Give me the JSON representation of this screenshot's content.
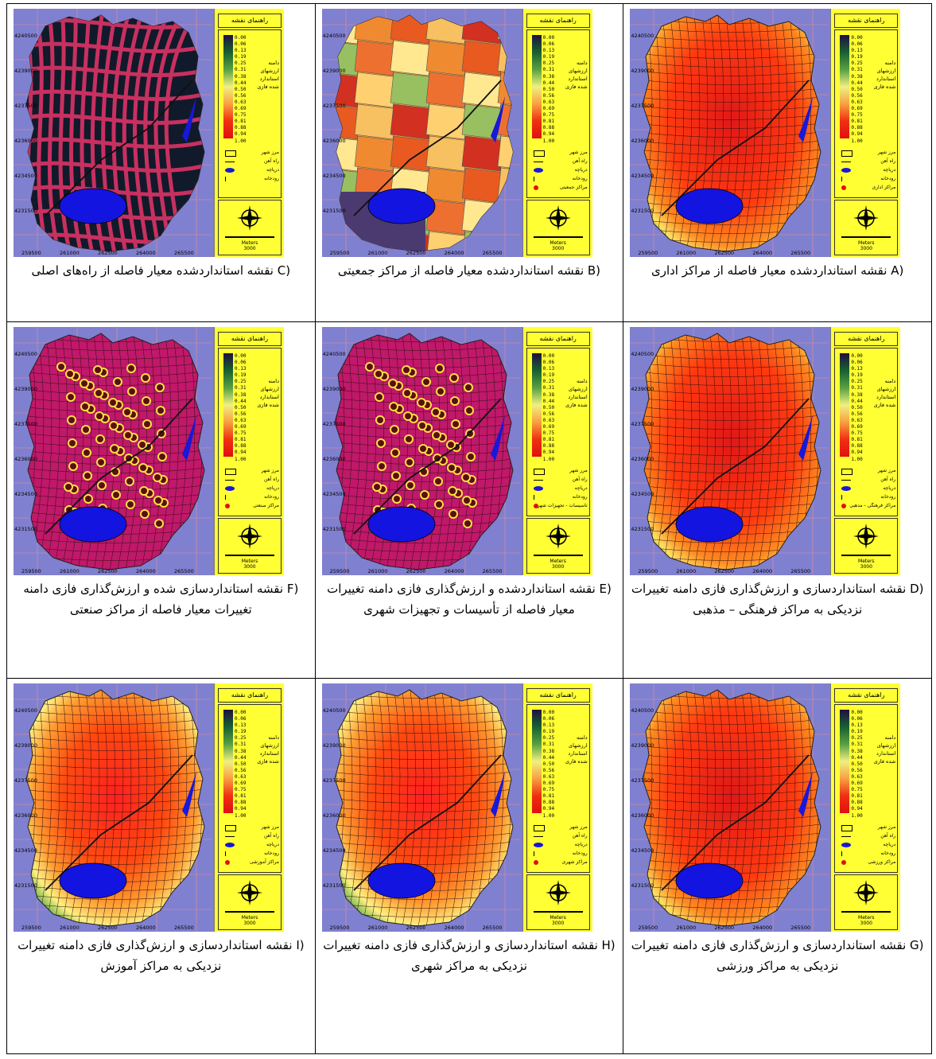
{
  "legend": {
    "title": "راهنمای نقشه",
    "ticks": [
      "0.00",
      "0.06",
      "0.13",
      "0.19",
      "0.25",
      "0.31",
      "0.38",
      "0.44",
      "0.50",
      "0.56",
      "0.63",
      "0.69",
      "0.75",
      "0.81",
      "0.88",
      "0.94",
      "1.00"
    ],
    "range_label": [
      "دامنه",
      "ارزشهای",
      "استاندارد",
      "شده فازی"
    ],
    "city_border": "مرز شهر",
    "railway": "راه آهن",
    "lake": "دریاچه",
    "river": "رودخانه",
    "meters": "Meters",
    "scale": "3000"
  },
  "x_ticks": [
    "259500",
    "261000",
    "262500",
    "264000",
    "265500"
  ],
  "y_ticks": [
    "4240500",
    "4239000",
    "4237500",
    "4236000",
    "4234500",
    "4231500"
  ],
  "panels": [
    {
      "letter": "C",
      "caption": "نقشه استانداردشده معیار فاصله از راه‌های اصلی",
      "style": "roads",
      "symbol": ""
    },
    {
      "letter": "B",
      "caption": "نقشه استانداردشده معیار فاصله از مراکز جمعیتی",
      "style": "zones",
      "symbol": "مراکز جمعیتی"
    },
    {
      "letter": "A",
      "caption": "نقشه استانداردشده معیار فاصله از مراکز اداری",
      "style": "heat",
      "symbol": "مراکز اداری"
    },
    {
      "letter": "F",
      "caption": "نقشه استانداردسازی شده و ارزش‌گذاری فازی دامنه تغییرات معیار فاصله از مراکز صنعتی",
      "style": "dots",
      "symbol": "مراکز صنعتی"
    },
    {
      "letter": "E",
      "caption": "نقشه استانداردشده و ارزش‌گذاری فازی دامنه تغییرات معیار فاصله از تأسیسات و تجهیزات شهری",
      "style": "dots2",
      "symbol": "تاسیسات - تجهیزات شهری"
    },
    {
      "letter": "D",
      "caption": "نقشه استانداردسازی و ارزش‌گذاری فازی دامنه تغییرات نزدیکی به مراکز فرهنگی – مذهبی",
      "style": "heat",
      "symbol": "مراکز فرهنگی - مذهبی"
    },
    {
      "letter": "I",
      "caption": "نقشه استانداردسازی و ارزش‌گذاری فازی دامنه تغییرات نزدیکی به مراکز آموزش",
      "style": "heat2",
      "symbol": "مراکز آموزشی"
    },
    {
      "letter": "H",
      "caption": "نقشه استانداردسازی و ارزش‌گذاری فازی دامنه تغییرات نزدیکی به مراکز شهری",
      "style": "heat2",
      "symbol": "مراکز شهری"
    },
    {
      "letter": "G",
      "caption": "نقشه استانداردسازی و ارزش‌گذاری فازی دامنه تغییرات نزدیکی به مراکز ورزشی",
      "style": "heat",
      "symbol": "مراکز ورزشی"
    }
  ]
}
